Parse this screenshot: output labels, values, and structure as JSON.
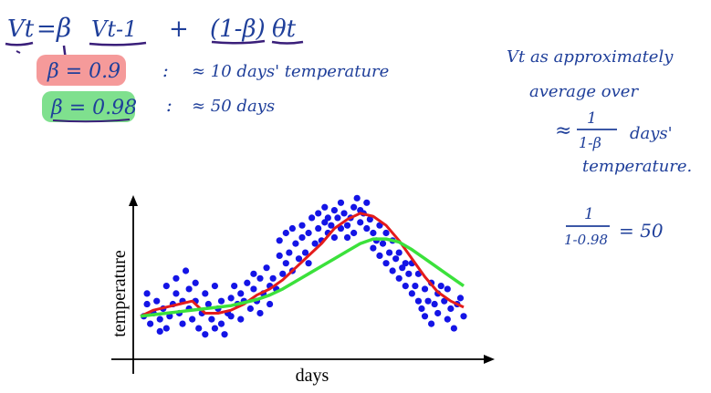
{
  "notes": {
    "formula": {
      "v_t": "Vt",
      "equals": "=",
      "beta": "β",
      "v_prev": "Vt-1",
      "plus": "+",
      "one_minus_beta": "(1-β)",
      "theta_t": "θt"
    },
    "beta_09": {
      "label": "β = 0.9",
      "colon": ":",
      "meaning": "≈ 10 days' temperature",
      "highlight": "#f59a9a"
    },
    "beta_098": {
      "label": "β = 0.98",
      "colon": ":",
      "meaning": "≈ 50 days",
      "highlight": "#7fe08e"
    },
    "right_note": {
      "line1": "Vt as approximately",
      "line2": "average over",
      "approx": "≈",
      "frac_num": "1",
      "frac_den": "1-β",
      "days": "days'",
      "line4": "temperature."
    },
    "calc": {
      "num": "1",
      "den": "1-0.98",
      "result": "= 50"
    }
  },
  "colors": {
    "ink_blue": "#1f3f9a",
    "ink_purple": "#3a1f7a",
    "scatter": "#1414e6",
    "ema_09": "#e41b1b",
    "ema_098": "#3be13b"
  },
  "chart_data": {
    "type": "scatter",
    "title": "",
    "xlabel": "days",
    "ylabel": "temperature",
    "xlim": [
      0,
      100
    ],
    "ylim": [
      0,
      100
    ],
    "grid": false,
    "points": [
      [
        1,
        20
      ],
      [
        2,
        35
      ],
      [
        2,
        28
      ],
      [
        3,
        15
      ],
      [
        4,
        22
      ],
      [
        5,
        30
      ],
      [
        6,
        10
      ],
      [
        6,
        18
      ],
      [
        7,
        25
      ],
      [
        8,
        40
      ],
      [
        8,
        12
      ],
      [
        9,
        20
      ],
      [
        10,
        28
      ],
      [
        11,
        35
      ],
      [
        11,
        45
      ],
      [
        12,
        22
      ],
      [
        13,
        30
      ],
      [
        13,
        15
      ],
      [
        14,
        50
      ],
      [
        15,
        38
      ],
      [
        15,
        25
      ],
      [
        16,
        18
      ],
      [
        17,
        30
      ],
      [
        17,
        42
      ],
      [
        18,
        12
      ],
      [
        19,
        22
      ],
      [
        20,
        8
      ],
      [
        20,
        35
      ],
      [
        21,
        28
      ],
      [
        22,
        18
      ],
      [
        23,
        40
      ],
      [
        23,
        12
      ],
      [
        24,
        25
      ],
      [
        25,
        30
      ],
      [
        25,
        15
      ],
      [
        26,
        8
      ],
      [
        27,
        22
      ],
      [
        28,
        32
      ],
      [
        28,
        20
      ],
      [
        29,
        40
      ],
      [
        30,
        28
      ],
      [
        31,
        35
      ],
      [
        31,
        18
      ],
      [
        32,
        30
      ],
      [
        33,
        42
      ],
      [
        34,
        25
      ],
      [
        35,
        38
      ],
      [
        35,
        48
      ],
      [
        36,
        30
      ],
      [
        37,
        45
      ],
      [
        37,
        22
      ],
      [
        38,
        35
      ],
      [
        39,
        52
      ],
      [
        40,
        40
      ],
      [
        40,
        28
      ],
      [
        41,
        45
      ],
      [
        42,
        38
      ],
      [
        43,
        60
      ],
      [
        43,
        70
      ],
      [
        44,
        48
      ],
      [
        45,
        55
      ],
      [
        45,
        75
      ],
      [
        46,
        62
      ],
      [
        47,
        50
      ],
      [
        47,
        78
      ],
      [
        48,
        68
      ],
      [
        49,
        58
      ],
      [
        50,
        72
      ],
      [
        50,
        80
      ],
      [
        51,
        62
      ],
      [
        52,
        55
      ],
      [
        52,
        75
      ],
      [
        53,
        85
      ],
      [
        54,
        68
      ],
      [
        55,
        78
      ],
      [
        55,
        88
      ],
      [
        56,
        70
      ],
      [
        57,
        82
      ],
      [
        57,
        92
      ],
      [
        58,
        75
      ],
      [
        58,
        85
      ],
      [
        59,
        80
      ],
      [
        60,
        90
      ],
      [
        60,
        72
      ],
      [
        61,
        85
      ],
      [
        62,
        78
      ],
      [
        62,
        95
      ],
      [
        63,
        88
      ],
      [
        64,
        80
      ],
      [
        64,
        72
      ],
      [
        65,
        85
      ],
      [
        66,
        92
      ],
      [
        66,
        75
      ],
      [
        67,
        98
      ],
      [
        68,
        82
      ],
      [
        68,
        90
      ],
      [
        69,
        88
      ],
      [
        70,
        78
      ],
      [
        70,
        95
      ],
      [
        71,
        84
      ],
      [
        72,
        75
      ],
      [
        72,
        65
      ],
      [
        73,
        70
      ],
      [
        74,
        80
      ],
      [
        74,
        60
      ],
      [
        75,
        68
      ],
      [
        76,
        55
      ],
      [
        76,
        75
      ],
      [
        77,
        62
      ],
      [
        78,
        50
      ],
      [
        78,
        70
      ],
      [
        79,
        58
      ],
      [
        80,
        45
      ],
      [
        80,
        62
      ],
      [
        81,
        52
      ],
      [
        82,
        40
      ],
      [
        82,
        55
      ],
      [
        83,
        48
      ],
      [
        84,
        35
      ],
      [
        84,
        55
      ],
      [
        85,
        40
      ],
      [
        86,
        30
      ],
      [
        86,
        48
      ],
      [
        87,
        25
      ],
      [
        88,
        38
      ],
      [
        88,
        20
      ],
      [
        89,
        30
      ],
      [
        90,
        42
      ],
      [
        90,
        15
      ],
      [
        91,
        28
      ],
      [
        92,
        35
      ],
      [
        92,
        22
      ],
      [
        93,
        40
      ],
      [
        94,
        30
      ],
      [
        95,
        18
      ],
      [
        95,
        38
      ],
      [
        96,
        25
      ],
      [
        97,
        12
      ],
      [
        98,
        28
      ],
      [
        99,
        32
      ],
      [
        100,
        20
      ]
    ],
    "series": [
      {
        "x": [
          0,
          4,
          8,
          12,
          16,
          20,
          24,
          28,
          32,
          36,
          40,
          44,
          48,
          52,
          56,
          60,
          64,
          68,
          72,
          76,
          80,
          84,
          88,
          92,
          96,
          100
        ],
        "values": [
          20,
          24,
          26,
          28,
          30,
          22,
          22,
          24,
          28,
          34,
          38,
          44,
          52,
          60,
          68,
          78,
          84,
          88,
          86,
          80,
          70,
          58,
          46,
          36,
          30,
          26
        ]
      },
      {
        "x": [
          0,
          4,
          8,
          12,
          16,
          20,
          24,
          28,
          32,
          36,
          40,
          44,
          48,
          52,
          56,
          60,
          64,
          68,
          72,
          76,
          80,
          84,
          88,
          92,
          96,
          100
        ],
        "values": [
          20,
          21,
          22,
          23,
          24,
          25,
          26,
          27,
          29,
          31,
          34,
          38,
          43,
          48,
          53,
          58,
          63,
          68,
          71,
          71,
          69,
          64,
          58,
          52,
          46,
          40
        ]
      }
    ]
  }
}
